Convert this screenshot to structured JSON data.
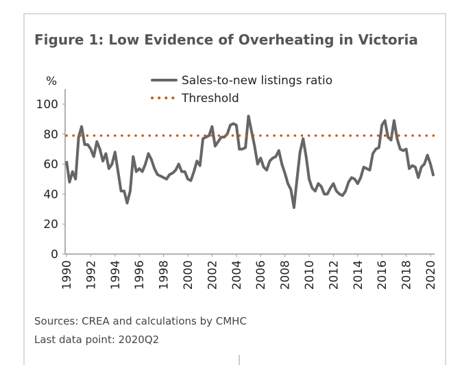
{
  "chart_data": {
    "type": "line",
    "title": "Figure 1: Low Evidence of Overheating in Victoria",
    "ylabel": "%",
    "x": [
      1990,
      1990.25,
      1990.5,
      1990.75,
      1991,
      1991.25,
      1991.5,
      1991.75,
      1992,
      1992.25,
      1992.5,
      1992.75,
      1993,
      1993.25,
      1993.5,
      1993.75,
      1994,
      1994.25,
      1994.5,
      1994.75,
      1995,
      1995.25,
      1995.5,
      1995.75,
      1996,
      1996.25,
      1996.5,
      1996.75,
      1997,
      1997.25,
      1997.5,
      1997.75,
      1998,
      1998.25,
      1998.5,
      1998.75,
      1999,
      1999.25,
      1999.5,
      1999.75,
      2000,
      2000.25,
      2000.5,
      2000.75,
      2001,
      2001.25,
      2001.5,
      2001.75,
      2002,
      2002.25,
      2002.5,
      2002.75,
      2003,
      2003.25,
      2003.5,
      2003.75,
      2004,
      2004.25,
      2004.5,
      2004.75,
      2005,
      2005.25,
      2005.5,
      2005.75,
      2006,
      2006.25,
      2006.5,
      2006.75,
      2007,
      2007.25,
      2007.5,
      2007.75,
      2008,
      2008.25,
      2008.5,
      2008.75,
      2009,
      2009.25,
      2009.5,
      2009.75,
      2010,
      2010.25,
      2010.5,
      2010.75,
      2011,
      2011.25,
      2011.5,
      2011.75,
      2012,
      2012.25,
      2012.5,
      2012.75,
      2013,
      2013.25,
      2013.5,
      2013.75,
      2014,
      2014.25,
      2014.5,
      2014.75,
      2015,
      2015.25,
      2015.5,
      2015.75,
      2016,
      2016.25,
      2016.5,
      2016.75,
      2017,
      2017.25,
      2017.5,
      2017.75,
      2018,
      2018.25,
      2018.5,
      2018.75,
      2019,
      2019.25,
      2019.5,
      2019.75,
      2020,
      2020.25
    ],
    "series": [
      {
        "name": "Sales-to-new listings ratio",
        "color": "#666666",
        "style": "solid",
        "values": [
          62,
          48,
          55,
          50,
          78,
          85,
          73,
          73,
          70,
          65,
          75,
          70,
          62,
          67,
          57,
          60,
          68,
          55,
          42,
          42,
          34,
          42,
          65,
          55,
          57,
          55,
          60,
          67,
          63,
          57,
          53,
          52,
          51,
          50,
          53,
          54,
          56,
          60,
          55,
          55,
          50,
          49,
          55,
          62,
          59,
          77,
          78,
          79,
          85,
          72,
          75,
          78,
          78,
          80,
          86,
          87,
          86,
          70,
          70,
          71,
          92,
          82,
          72,
          60,
          64,
          58,
          56,
          62,
          64,
          65,
          69,
          60,
          54,
          47,
          43,
          31,
          50,
          68,
          77,
          65,
          50,
          44,
          42,
          47,
          45,
          40,
          40,
          44,
          47,
          42,
          40,
          39,
          42,
          48,
          51,
          50,
          47,
          51,
          58,
          57,
          56,
          67,
          70,
          71,
          86,
          89,
          78,
          76,
          89,
          77,
          70,
          69,
          70,
          57,
          59,
          58,
          51,
          58,
          60,
          66,
          60,
          52
        ]
      },
      {
        "name": "Threshold",
        "color": "#c55a11",
        "style": "dotted",
        "x": [
          1990,
          2020.25
        ],
        "values": [
          79,
          79
        ]
      }
    ],
    "xlim": [
      1990,
      2020.25
    ],
    "xticks": [
      1990,
      1992,
      1994,
      1996,
      1998,
      2000,
      2002,
      2004,
      2006,
      2008,
      2010,
      2012,
      2014,
      2016,
      2018,
      2020
    ],
    "ylim": [
      0,
      100
    ],
    "yticks": [
      0,
      20,
      40,
      60,
      80,
      100
    ],
    "notes": [
      "Sources: CREA and calculations by CMHC",
      "Last data point: 2020Q2"
    ]
  }
}
